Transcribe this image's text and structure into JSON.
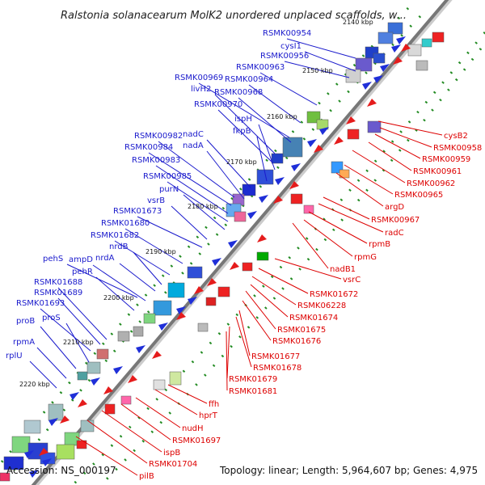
{
  "title": "Ralstonia solanacearum MolK2 unordered unplaced scaffolds, w...",
  "footer": {
    "accession": "Accession: NS_000197",
    "topology": "Topology: linear; Length: 5,964,607 bp; Genes: 4,975"
  },
  "colors": {
    "forward_label": "#1a1acc",
    "reverse_label": "#dd0000",
    "backbone": "#777777",
    "tick": "#228b22"
  },
  "kbp_ticks": [
    "2140 kbp",
    "2150 kbp",
    "2160 kbp",
    "2170 kbp",
    "2180 kbp",
    "2190 kbp",
    "2200 kbp",
    "2210 kbp",
    "2220 kbp"
  ],
  "forward_genes": [
    "RSMK00954",
    "cysI1",
    "RSMK00956",
    "RSMK00963",
    "RSMK00969",
    "RSMK00964",
    "livH2",
    "RSMK00968",
    "RSMK00970",
    "ispH",
    "fkpB",
    "RSMK00982",
    "nadC",
    "RSMK00984",
    "nadA",
    "RSMK00983",
    "RSMK00985",
    "purN",
    "vsrB",
    "RSMK01673",
    "RSMK01680",
    "RSMK01682",
    "nrdB",
    "nrdA",
    "pehS",
    "ampD",
    "pehR",
    "RSMK01688",
    "RSMK01689",
    "RSMK01693",
    "proS",
    "proB",
    "rpmA",
    "rplU"
  ],
  "reverse_genes": [
    "cysB2",
    "RSMK00958",
    "RSMK00959",
    "RSMK00961",
    "RSMK00962",
    "RSMK00965",
    "argD",
    "RSMK00967",
    "radC",
    "rpmB",
    "rpmG",
    "nadB1",
    "vsrC",
    "RSMK01672",
    "RSMK06228",
    "RSMK01674",
    "RSMK01675",
    "RSMK01676",
    "RSMK01677",
    "RSMK01678",
    "RSMK01679",
    "RSMK01681",
    "ffh",
    "hprT",
    "nudH",
    "RSMK01697",
    "ispB",
    "RSMK01704",
    "pilB"
  ]
}
